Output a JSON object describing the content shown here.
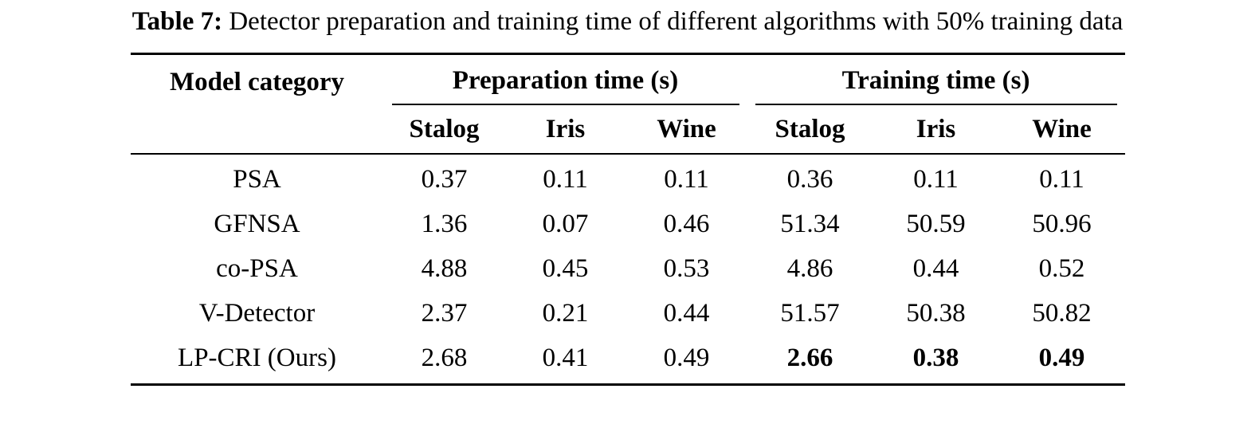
{
  "caption": {
    "label": "Table 7:",
    "text": "Detector preparation and training time of different algorithms with 50% training data"
  },
  "table": {
    "col_model": "Model category",
    "group_prep": "Preparation time (s)",
    "group_train": "Training time (s)",
    "subheaders": [
      "Stalog",
      "Iris",
      "Wine"
    ],
    "rows": [
      {
        "model": "PSA",
        "prep": [
          "0.37",
          "0.11",
          "0.11"
        ],
        "train": [
          "0.36",
          "0.11",
          "0.11"
        ]
      },
      {
        "model": "GFNSA",
        "prep": [
          "1.36",
          "0.07",
          "0.46"
        ],
        "train": [
          "51.34",
          "50.59",
          "50.96"
        ]
      },
      {
        "model": "co-PSA",
        "prep": [
          "4.88",
          "0.45",
          "0.53"
        ],
        "train": [
          "4.86",
          "0.44",
          "0.52"
        ]
      },
      {
        "model": "V-Detector",
        "prep": [
          "2.37",
          "0.21",
          "0.44"
        ],
        "train": [
          "51.57",
          "50.38",
          "50.82"
        ]
      },
      {
        "model": "LP-CRI (Ours)",
        "prep": [
          "2.68",
          "0.41",
          "0.49"
        ],
        "train": [
          "2.66",
          "0.38",
          "0.49"
        ]
      }
    ]
  }
}
